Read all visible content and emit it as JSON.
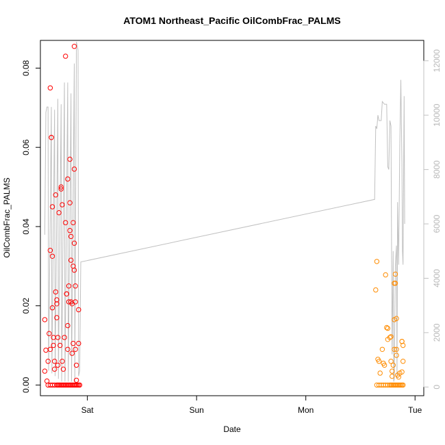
{
  "chart_data": {
    "type": "scatter",
    "title": "ATOM1 Northeast_Pacific OilCombFrac_PALMS",
    "xlabel": "Date",
    "ylabel": "OilCombFrac_PALMS",
    "x_unit": "days from Sat 00:00",
    "xlim": [
      -0.43,
      3.08
    ],
    "ylim": [
      -0.0027,
      0.087
    ],
    "x_ticks": [
      {
        "value": 0,
        "label": "Sat"
      },
      {
        "value": 1,
        "label": "Sun"
      },
      {
        "value": 2,
        "label": "Mon"
      },
      {
        "value": 3,
        "label": "Tue"
      }
    ],
    "y_ticks": [
      0.0,
      0.02,
      0.04,
      0.06,
      0.08
    ],
    "y_tick_labels": [
      "0.00",
      "0.02",
      "0.04",
      "0.06",
      "0.08"
    ],
    "y2_lim": [
      -320,
      12750
    ],
    "y2_ticks": [
      0,
      2000,
      4000,
      6000,
      8000,
      10000,
      12000
    ],
    "y2_tick_labels": [
      "0",
      "2000",
      "4000",
      "6000",
      "8000",
      "10000",
      "12000"
    ],
    "grid": false,
    "colors": {
      "series1": "#ff0000",
      "series2": "#ff8c00",
      "altitude": "#c0c0c0"
    },
    "series": [
      {
        "color": "#ff0000",
        "marker": "open-circle",
        "points": [
          [
            -0.39,
            0.0035
          ],
          [
            -0.39,
            0.0165
          ],
          [
            -0.38,
            0.0088
          ],
          [
            -0.37,
            0.001
          ],
          [
            -0.36,
            0.006
          ],
          [
            -0.35,
            0.013
          ],
          [
            -0.34,
            0.009
          ],
          [
            -0.34,
            0.034
          ],
          [
            -0.34,
            0.075
          ],
          [
            -0.33,
            0.0625
          ],
          [
            -0.33,
            0.0625
          ],
          [
            -0.32,
            0.045
          ],
          [
            -0.32,
            0.0325
          ],
          [
            -0.32,
            0.0195
          ],
          [
            -0.31,
            0.012
          ],
          [
            -0.31,
            0.01
          ],
          [
            -0.3,
            0.006
          ],
          [
            -0.3,
            0.004
          ],
          [
            -0.29,
            0.048
          ],
          [
            -0.29,
            0.0235
          ],
          [
            -0.28,
            0.0215
          ],
          [
            -0.28,
            0.0205
          ],
          [
            -0.28,
            0.017
          ],
          [
            -0.27,
            0.012
          ],
          [
            -0.27,
            0.005
          ],
          [
            -0.26,
            0.0435
          ],
          [
            -0.25,
            0.01
          ],
          [
            -0.24,
            0.05
          ],
          [
            -0.24,
            0.0495
          ],
          [
            -0.23,
            0.0455
          ],
          [
            -0.23,
            0.006
          ],
          [
            -0.22,
            0.004
          ],
          [
            -0.21,
            0.012
          ],
          [
            -0.2,
            0.041
          ],
          [
            -0.2,
            0.083
          ],
          [
            -0.19,
            0.023
          ],
          [
            -0.19,
            0.023
          ],
          [
            -0.18,
            0.052
          ],
          [
            -0.18,
            0.015
          ],
          [
            -0.18,
            0.009
          ],
          [
            -0.17,
            0.025
          ],
          [
            -0.17,
            0.021
          ],
          [
            -0.16,
            0.057
          ],
          [
            -0.16,
            0.046
          ],
          [
            -0.16,
            0.039
          ],
          [
            -0.15,
            0.0375
          ],
          [
            -0.15,
            0.0315
          ],
          [
            -0.15,
            0.021
          ],
          [
            -0.14,
            0.0205
          ],
          [
            -0.14,
            0.008
          ],
          [
            -0.13,
            0.041
          ],
          [
            -0.13,
            0.03
          ],
          [
            -0.13,
            0.0105
          ],
          [
            -0.12,
            0.0855
          ],
          [
            -0.12,
            0.0545
          ],
          [
            -0.12,
            0.0358
          ],
          [
            -0.12,
            0.029
          ],
          [
            -0.11,
            0.025
          ],
          [
            -0.11,
            0.021
          ],
          [
            -0.11,
            0.009
          ],
          [
            -0.1,
            0.005
          ],
          [
            -0.1,
            0.0012
          ],
          [
            -0.08,
            0.019
          ],
          [
            -0.08,
            0.0105
          ],
          [
            -0.36,
            0.0
          ],
          [
            -0.34,
            0.0
          ],
          [
            -0.32,
            0.0
          ],
          [
            -0.3,
            0.0
          ],
          [
            -0.28,
            0.0
          ],
          [
            -0.27,
            0.0
          ],
          [
            -0.26,
            0.0
          ],
          [
            -0.25,
            0.0
          ],
          [
            -0.24,
            0.0
          ],
          [
            -0.23,
            0.0
          ],
          [
            -0.22,
            0.0
          ],
          [
            -0.21,
            0.0
          ],
          [
            -0.2,
            0.0
          ],
          [
            -0.19,
            0.0
          ],
          [
            -0.18,
            0.0
          ],
          [
            -0.17,
            0.0
          ],
          [
            -0.16,
            0.0
          ],
          [
            -0.15,
            0.0
          ],
          [
            -0.14,
            0.0
          ],
          [
            -0.13,
            0.0
          ],
          [
            -0.12,
            0.0
          ],
          [
            -0.11,
            0.0
          ],
          [
            -0.1,
            0.0
          ],
          [
            -0.09,
            0.0
          ],
          [
            -0.08,
            0.0
          ],
          [
            -0.07,
            0.0
          ]
        ]
      },
      {
        "color": "#ff8c00",
        "marker": "open-circle",
        "points": [
          [
            2.64,
            0.024
          ],
          [
            2.65,
            0.0312
          ],
          [
            2.66,
            0.0065
          ],
          [
            2.67,
            0.006
          ],
          [
            2.68,
            0.003
          ],
          [
            2.7,
            0.009
          ],
          [
            2.71,
            0.0055
          ],
          [
            2.72,
            0.005
          ],
          [
            2.73,
            0.0278
          ],
          [
            2.74,
            0.0145
          ],
          [
            2.75,
            0.0143
          ],
          [
            2.75,
            0.0115
          ],
          [
            2.77,
            0.012
          ],
          [
            2.78,
            0.0122
          ],
          [
            2.78,
            0.006
          ],
          [
            2.79,
            0.0035
          ],
          [
            2.79,
            0.0022
          ],
          [
            2.8,
            0.005
          ],
          [
            2.81,
            0.0165
          ],
          [
            2.81,
            0.0257
          ],
          [
            2.81,
            0.009
          ],
          [
            2.82,
            0.0257
          ],
          [
            2.82,
            0.028
          ],
          [
            2.83,
            0.0168
          ],
          [
            2.83,
            0.009
          ],
          [
            2.83,
            0.0075
          ],
          [
            2.84,
            0.0025
          ],
          [
            2.85,
            0.002
          ],
          [
            2.86,
            0.003
          ],
          [
            2.88,
            0.011
          ],
          [
            2.88,
            0.011
          ],
          [
            2.89,
            0.01
          ],
          [
            2.89,
            0.006
          ],
          [
            2.88,
            0.0033
          ],
          [
            2.65,
            0.0
          ],
          [
            2.67,
            0.0
          ],
          [
            2.69,
            0.0
          ],
          [
            2.71,
            0.0
          ],
          [
            2.73,
            0.0
          ],
          [
            2.75,
            0.0
          ],
          [
            2.77,
            0.0
          ],
          [
            2.78,
            0.0
          ],
          [
            2.79,
            0.0
          ],
          [
            2.8,
            0.0
          ],
          [
            2.81,
            0.0
          ],
          [
            2.82,
            0.0
          ],
          [
            2.83,
            0.0
          ],
          [
            2.84,
            0.0
          ],
          [
            2.85,
            0.0
          ],
          [
            2.86,
            0.0
          ],
          [
            2.87,
            0.0
          ],
          [
            2.88,
            0.0
          ],
          [
            2.89,
            0.0
          ]
        ]
      },
      {
        "color": "#c0c0c0",
        "marker": "line",
        "axis": "right",
        "points": [
          [
            -0.39,
            5600
          ],
          [
            -0.38,
            10100
          ],
          [
            -0.37,
            10300
          ],
          [
            -0.36,
            10300
          ],
          [
            -0.355,
            600
          ],
          [
            -0.33,
            10300
          ],
          [
            -0.325,
            500
          ],
          [
            -0.3,
            10200
          ],
          [
            -0.295,
            400
          ],
          [
            -0.27,
            10600
          ],
          [
            -0.265,
            300
          ],
          [
            -0.24,
            10400
          ],
          [
            -0.235,
            200
          ],
          [
            -0.21,
            11200
          ],
          [
            -0.205,
            200
          ],
          [
            -0.18,
            11200
          ],
          [
            -0.175,
            200
          ],
          [
            -0.15,
            10800
          ],
          [
            -0.145,
            200
          ],
          [
            -0.12,
            11900
          ],
          [
            -0.115,
            200
          ],
          [
            -0.1,
            12700
          ],
          [
            -0.095,
            12600
          ],
          [
            -0.085,
            12400
          ],
          [
            -0.08,
            400
          ],
          [
            -0.07,
            600
          ],
          [
            -0.06,
            4600
          ],
          [
            2.63,
            6900
          ],
          [
            2.64,
            9600
          ],
          [
            2.65,
            9500
          ],
          [
            2.66,
            10000
          ],
          [
            2.67,
            9800
          ],
          [
            2.68,
            9800
          ],
          [
            2.69,
            9800
          ],
          [
            2.7,
            10500
          ],
          [
            2.72,
            10400
          ],
          [
            2.74,
            10400
          ],
          [
            2.75,
            8100
          ],
          [
            2.76,
            8000
          ],
          [
            2.77,
            9800
          ],
          [
            2.78,
            9600
          ],
          [
            2.79,
            1200
          ],
          [
            2.8,
            5000
          ],
          [
            2.805,
            200
          ],
          [
            2.81,
            300
          ],
          [
            2.82,
            4500
          ],
          [
            2.83,
            5200
          ],
          [
            2.835,
            300
          ],
          [
            2.84,
            6800
          ],
          [
            2.85,
            4500
          ],
          [
            2.86,
            8800
          ],
          [
            2.87,
            11300
          ],
          [
            2.88,
            8200
          ],
          [
            2.885,
            5000
          ],
          [
            2.89,
            4500
          ],
          [
            2.9,
            10700
          ],
          [
            2.905,
            6000
          ]
        ]
      }
    ]
  }
}
